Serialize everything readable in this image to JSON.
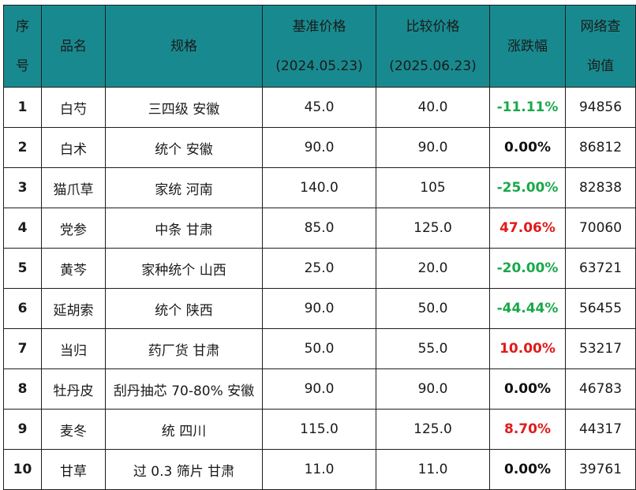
{
  "headers": {
    "index": [
      "序",
      "号"
    ],
    "name": "品名",
    "spec": "规格",
    "base_price": [
      "基准价格",
      "(2024.05.23)"
    ],
    "compare_price": [
      "比较价格",
      "(2025.06.23)"
    ],
    "change": "涨跌幅",
    "views": [
      "网络查",
      "询值"
    ]
  },
  "colors": {
    "header_bg": "#188a8f",
    "rise": "#e01b1b",
    "fall": "#1aa84a",
    "flat": "#111111"
  },
  "rows": [
    {
      "index": "1",
      "name": "白芍",
      "spec": "三四级 安徽",
      "base": "45.0",
      "compare": "40.0",
      "change": "-11.11%",
      "dir": "neg",
      "views": "94856"
    },
    {
      "index": "2",
      "name": "白术",
      "spec": "统个 安徽",
      "base": "90.0",
      "compare": "90.0",
      "change": "0.00%",
      "dir": "flat",
      "views": "86812"
    },
    {
      "index": "3",
      "name": "猫爪草",
      "spec": "家统 河南",
      "base": "140.0",
      "compare": "105",
      "change": "-25.00%",
      "dir": "neg",
      "views": "82838"
    },
    {
      "index": "4",
      "name": "党参",
      "spec": "中条 甘肃",
      "base": "85.0",
      "compare": "125.0",
      "change": "47.06%",
      "dir": "pos",
      "views": "70060"
    },
    {
      "index": "5",
      "name": "黄芩",
      "spec": "家种统个 山西",
      "base": "25.0",
      "compare": "20.0",
      "change": "-20.00%",
      "dir": "neg",
      "views": "63721"
    },
    {
      "index": "6",
      "name": "延胡索",
      "spec": "统个 陕西",
      "base": "90.0",
      "compare": "50.0",
      "change": "-44.44%",
      "dir": "neg",
      "views": "56455"
    },
    {
      "index": "7",
      "name": "当归",
      "spec": "药厂货 甘肃",
      "base": "50.0",
      "compare": "55.0",
      "change": "10.00%",
      "dir": "pos",
      "views": "53217"
    },
    {
      "index": "8",
      "name": "牡丹皮",
      "spec": "刮丹抽芯 70-80% 安徽",
      "base": "90.0",
      "compare": "90.0",
      "change": "0.00%",
      "dir": "flat",
      "views": "46783"
    },
    {
      "index": "9",
      "name": "麦冬",
      "spec": "统 四川",
      "base": "115.0",
      "compare": "125.0",
      "change": "8.70%",
      "dir": "pos",
      "views": "44317"
    },
    {
      "index": "10",
      "name": "甘草",
      "spec": "过 0.3 筛片 甘肃",
      "base": "11.0",
      "compare": "11.0",
      "change": "0.00%",
      "dir": "flat",
      "views": "39761"
    }
  ]
}
